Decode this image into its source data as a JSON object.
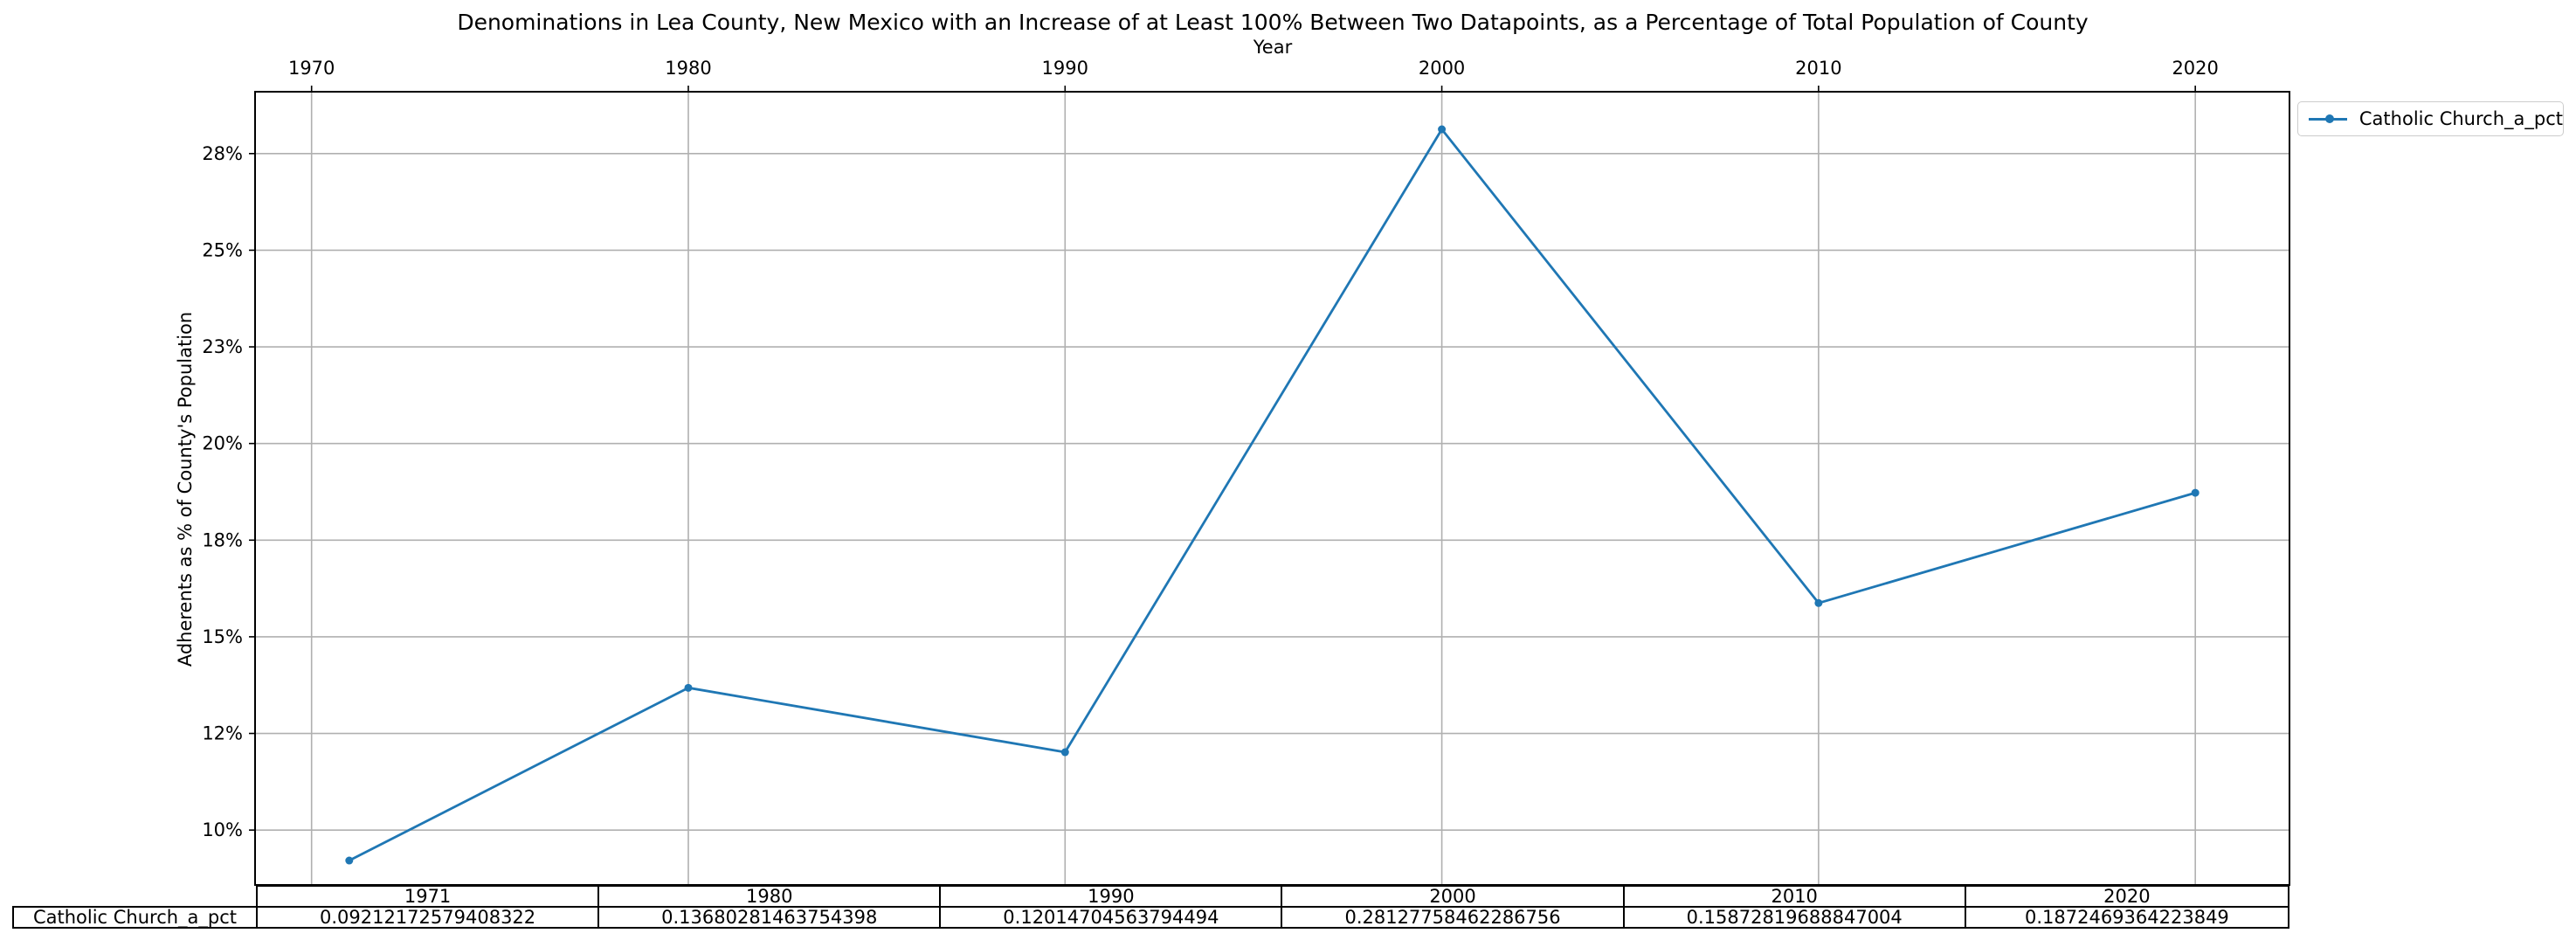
{
  "chart_data": {
    "type": "line",
    "title": "Denominations in Lea County, New Mexico with an Increase of at Least 100% Between Two Datapoints, as a Percentage of Total Population of County",
    "xlabel": "Year",
    "ylabel": "Adherents as % of County's Population",
    "x_ticks": [
      1970,
      1980,
      1990,
      2000,
      2010,
      2020
    ],
    "y_ticks": [
      0.1,
      0.125,
      0.15,
      0.175,
      0.2,
      0.225,
      0.25,
      0.275
    ],
    "y_tick_labels": [
      "10%",
      "12%",
      "15%",
      "18%",
      "20%",
      "23%",
      "25%",
      "28%"
    ],
    "xlim": [
      1968.5,
      2022.5
    ],
    "ylim": [
      0.0858,
      0.291
    ],
    "grid": true,
    "legend_position": "outside-top-right",
    "series": [
      {
        "name": "Catholic Church_a_pct",
        "color": "#1f77b4",
        "x": [
          1971,
          1980,
          1990,
          2000,
          2010,
          2020
        ],
        "values": [
          0.09212172579408322,
          0.13680281463754398,
          0.12014704563794494,
          0.28127758462286756,
          0.15872819688847004,
          0.1872469364223849
        ]
      }
    ],
    "table": {
      "row_label": "Catholic Church_a_pct",
      "columns": [
        "1971",
        "1980",
        "1990",
        "2000",
        "2010",
        "2020"
      ],
      "cells": [
        "0.09212172579408322",
        "0.13680281463754398",
        "0.12014704563794494",
        "0.28127758462286756",
        "0.15872819688847004",
        "0.1872469364223849"
      ]
    }
  }
}
